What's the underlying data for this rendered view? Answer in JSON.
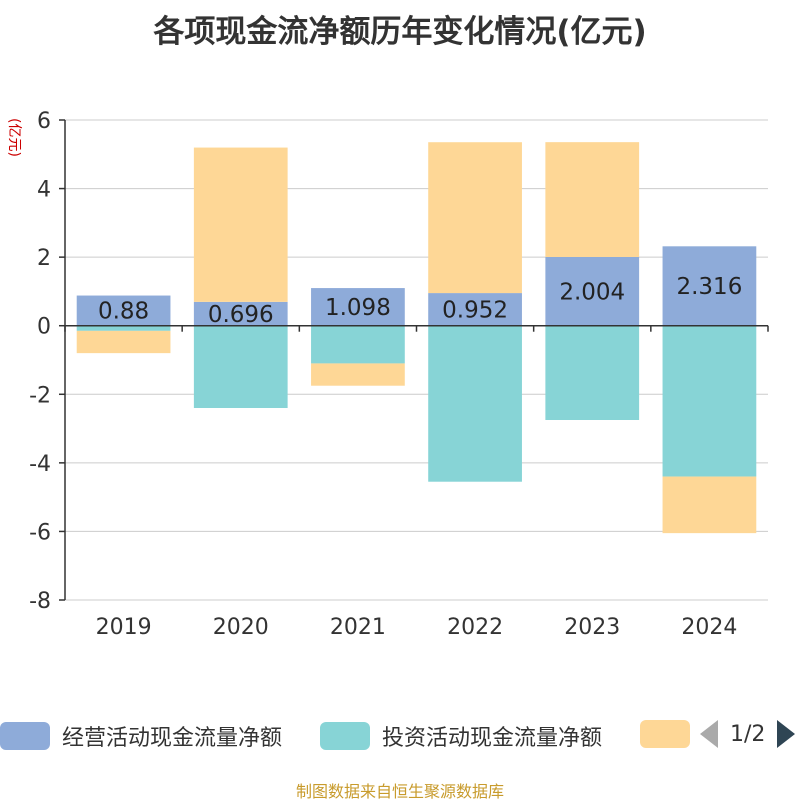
{
  "title": "各项现金流净额历年变化情况(亿元)",
  "unit_label": "(亿元)",
  "footer": "制图数据来自恒生聚源数据库",
  "legend": {
    "items": [
      {
        "label": "经营活动现金流量净额",
        "color": "#8eabd9"
      },
      {
        "label": "投资活动现金流量净额",
        "color": "#87d4d6"
      },
      {
        "label": "",
        "color": "#fed796"
      }
    ],
    "page_indicator": "1/2"
  },
  "chart_data": {
    "type": "bar",
    "stacked": true,
    "title": "各项现金流净额历年变化情况(亿元)",
    "ylabel": "(亿元)",
    "ylim": [
      -8,
      6
    ],
    "yticks": [
      6,
      4,
      2,
      0,
      -2,
      -4,
      -6,
      -8
    ],
    "categories": [
      "2019",
      "2020",
      "2021",
      "2022",
      "2023",
      "2024"
    ],
    "series": [
      {
        "name": "经营活动现金流量净额",
        "color": "#8eabd9",
        "values": [
          0.88,
          0.696,
          1.098,
          0.952,
          2.004,
          2.316
        ],
        "labels": [
          "0.88",
          "0.696",
          "1.098",
          "0.952",
          "2.004",
          "2.316"
        ]
      },
      {
        "name": "投资活动现金流量净额",
        "color": "#87d4d6",
        "values": [
          -0.15,
          -2.4,
          -1.1,
          -4.55,
          -2.75,
          -4.4
        ]
      },
      {
        "name": "",
        "color": "#fed796",
        "values": [
          -0.65,
          4.5,
          -0.65,
          4.4,
          3.35,
          -1.65
        ]
      }
    ]
  }
}
